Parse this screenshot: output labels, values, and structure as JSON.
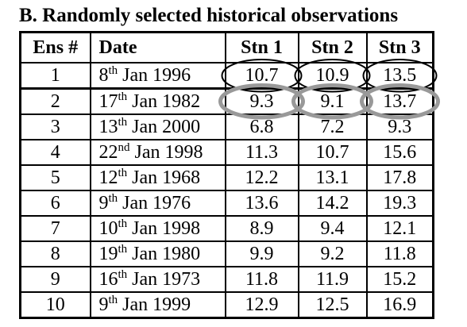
{
  "title": "B.  Randomly selected historical observations",
  "headers": [
    "Ens #",
    "Date",
    "Stn 1",
    "Stn 2",
    "Stn 3"
  ],
  "rows": [
    {
      "ens": "1",
      "day": "8",
      "suffix": "th",
      "rest": " Jan 1996",
      "stn1": "10.7",
      "stn2": "10.9",
      "stn3": "13.5"
    },
    {
      "ens": "2",
      "day": "17",
      "suffix": "th",
      "rest": " Jan 1982",
      "stn1": "9.3",
      "stn2": "9.1",
      "stn3": "13.7"
    },
    {
      "ens": "3",
      "day": "13",
      "suffix": "th",
      "rest": " Jan 2000",
      "stn1": "6.8",
      "stn2": "7.2",
      "stn3": "9.3"
    },
    {
      "ens": "4",
      "day": "22",
      "suffix": "nd",
      "rest": " Jan 1998",
      "stn1": "11.3",
      "stn2": "10.7",
      "stn3": "15.6"
    },
    {
      "ens": "5",
      "day": "12",
      "suffix": "th",
      "rest": " Jan 1968",
      "stn1": "12.2",
      "stn2": "13.1",
      "stn3": "17.8"
    },
    {
      "ens": "6",
      "day": "9",
      "suffix": "th",
      "rest": " Jan 1976",
      "stn1": "13.6",
      "stn2": "14.2",
      "stn3": "19.3"
    },
    {
      "ens": "7",
      "day": "10",
      "suffix": "th",
      "rest": " Jan 1998",
      "stn1": "8.9",
      "stn2": "9.4",
      "stn3": "12.1"
    },
    {
      "ens": "8",
      "day": "19",
      "suffix": "th",
      "rest": " Jan 1980",
      "stn1": "9.9",
      "stn2": "9.2",
      "stn3": "11.8"
    },
    {
      "ens": "9",
      "day": "16",
      "suffix": "th",
      "rest": " Jan 1973",
      "stn1": "11.8",
      "stn2": "11.9",
      "stn3": "15.2"
    },
    {
      "ens": "10",
      "day": "9",
      "suffix": "th",
      "rest": " Jan 1999",
      "stn1": "12.9",
      "stn2": "12.5",
      "stn3": "16.9"
    }
  ],
  "colors": {
    "row1_circle": "#000000",
    "row2_circle": "#999999"
  }
}
